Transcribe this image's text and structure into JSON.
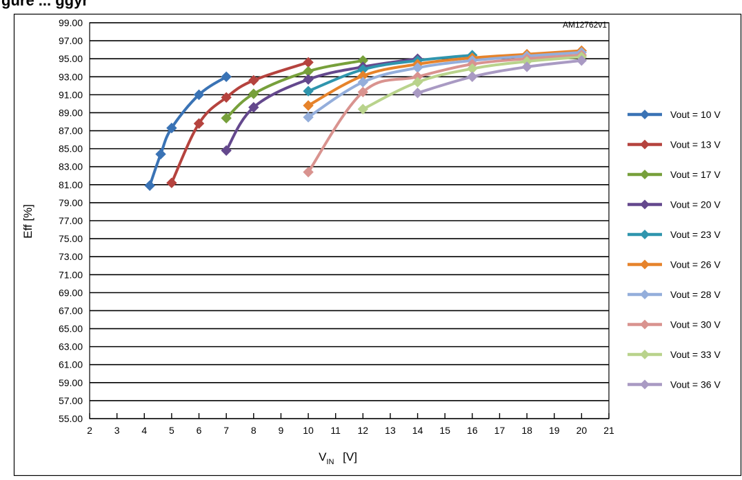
{
  "figure": {
    "caption_fragment": "gure ... ggyr",
    "id_label": "AM12762v1"
  },
  "chart_data": {
    "type": "line",
    "xlabel_main": "V",
    "xlabel_sub": "IN",
    "xlabel_unit": "[V]",
    "ylabel": "Eff  [%]",
    "xlim": [
      2,
      21
    ],
    "ylim": [
      55,
      99
    ],
    "x_ticks": [
      "2",
      "3",
      "4",
      "5",
      "6",
      "7",
      "8",
      "9",
      "10",
      "11",
      "12",
      "13",
      "14",
      "15",
      "16",
      "17",
      "18",
      "19",
      "20",
      "21"
    ],
    "y_ticks": [
      "55.00",
      "57.00",
      "59.00",
      "61.00",
      "63.00",
      "65.00",
      "67.00",
      "69.00",
      "71.00",
      "73.00",
      "75.00",
      "77.00",
      "79.00",
      "81.00",
      "83.00",
      "85.00",
      "87.00",
      "89.00",
      "91.00",
      "93.00",
      "95.00",
      "97.00",
      "99.00"
    ],
    "grid": "horizontal",
    "legend_position": "right",
    "series": [
      {
        "name": "Vout = 10 V",
        "color": "#3a73b5",
        "x": [
          4.2,
          4.6,
          5,
          6,
          7
        ],
        "y": [
          80.9,
          84.4,
          87.3,
          91.0,
          93.0
        ]
      },
      {
        "name": "Vout = 13 V",
        "color": "#b5433e",
        "x": [
          5,
          6,
          7,
          8,
          10
        ],
        "y": [
          81.2,
          87.8,
          90.7,
          92.6,
          94.6
        ]
      },
      {
        "name": "Vout = 17 V",
        "color": "#77a03b",
        "x": [
          7,
          8,
          10,
          12
        ],
        "y": [
          88.4,
          91.1,
          93.6,
          94.8
        ]
      },
      {
        "name": "Vout = 20 V",
        "color": "#64488d",
        "x": [
          7,
          8,
          10,
          12,
          14
        ],
        "y": [
          84.8,
          89.6,
          92.7,
          94.1,
          95.0
        ]
      },
      {
        "name": "Vout = 23 V",
        "color": "#2f95ad",
        "x": [
          10,
          12,
          14,
          16
        ],
        "y": [
          91.4,
          93.8,
          94.8,
          95.4
        ]
      },
      {
        "name": "Vout = 26 V",
        "color": "#e6832b",
        "x": [
          10,
          12,
          14,
          16,
          18,
          20
        ],
        "y": [
          89.8,
          93.1,
          94.4,
          95.1,
          95.5,
          95.9
        ]
      },
      {
        "name": "Vout = 28 V",
        "color": "#94aedb",
        "x": [
          10,
          12,
          14,
          16,
          18,
          20
        ],
        "y": [
          88.5,
          92.4,
          94.0,
          94.8,
          95.3,
          95.7
        ]
      },
      {
        "name": "Vout = 30 V",
        "color": "#d9938f",
        "x": [
          10,
          12,
          14,
          16,
          18,
          20
        ],
        "y": [
          82.4,
          91.3,
          93.0,
          94.4,
          95.0,
          95.4
        ]
      },
      {
        "name": "Vout = 33 V",
        "color": "#b9d38c",
        "x": [
          12,
          14,
          16,
          18,
          20
        ],
        "y": [
          89.4,
          92.4,
          93.9,
          94.7,
          95.2
        ]
      },
      {
        "name": "Vout = 36 V",
        "color": "#a99ac3",
        "x": [
          14,
          16,
          18,
          20
        ],
        "y": [
          91.2,
          93.0,
          94.1,
          94.8
        ]
      }
    ]
  }
}
